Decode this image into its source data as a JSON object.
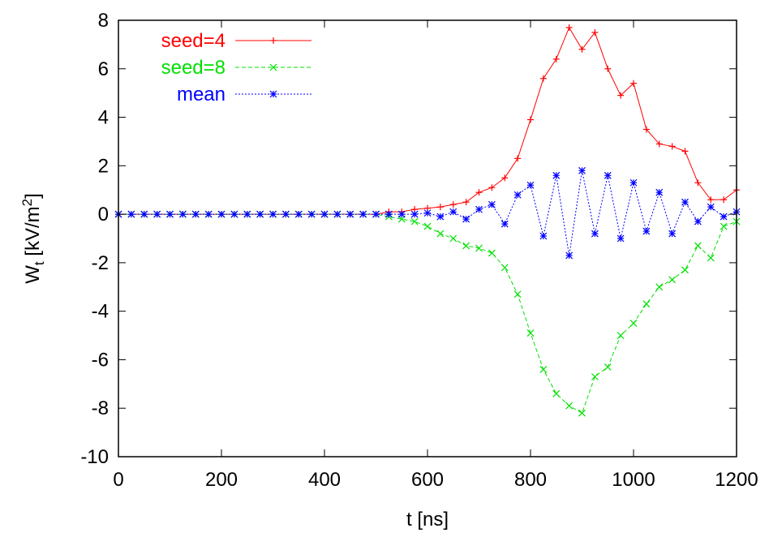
{
  "chart_data": {
    "type": "line",
    "xlabel": "t [ns]",
    "ylabel": {
      "base": "W",
      "sub": "t",
      "unit_open": " [kV/m",
      "sup": "2",
      "unit_close": "]"
    },
    "xlim": [
      0,
      1200
    ],
    "ylim": [
      -10,
      8
    ],
    "xticks": [
      0,
      200,
      400,
      600,
      800,
      1000,
      1200
    ],
    "yticks": [
      -10,
      -8,
      -6,
      -4,
      -2,
      0,
      2,
      4,
      6,
      8
    ],
    "grid": false,
    "legend": "top-left",
    "series": [
      {
        "name": "seed=4",
        "color": "#ff0000",
        "marker": "plus",
        "dash": "",
        "x": [
          0,
          25,
          50,
          75,
          100,
          125,
          150,
          175,
          200,
          225,
          250,
          275,
          300,
          325,
          350,
          375,
          400,
          425,
          450,
          475,
          500,
          525,
          550,
          575,
          600,
          625,
          650,
          675,
          700,
          725,
          750,
          775,
          800,
          825,
          850,
          875,
          900,
          925,
          950,
          975,
          1000,
          1025,
          1050,
          1075,
          1100,
          1125,
          1150,
          1175,
          1200
        ],
        "y": [
          0,
          0,
          0,
          0,
          0,
          0,
          0,
          0,
          0,
          0,
          0,
          0,
          0,
          0,
          0,
          0,
          0,
          0,
          0,
          0,
          0,
          0.1,
          0.1,
          0.2,
          0.25,
          0.3,
          0.4,
          0.5,
          0.9,
          1.1,
          1.5,
          2.3,
          3.9,
          5.6,
          6.4,
          7.7,
          6.8,
          7.5,
          6.0,
          4.9,
          5.4,
          3.5,
          2.9,
          2.8,
          2.6,
          1.3,
          0.6,
          0.6,
          1.0
        ]
      },
      {
        "name": "seed=8",
        "color": "#00e000",
        "marker": "cross",
        "dash": "5,3",
        "x": [
          0,
          25,
          50,
          75,
          100,
          125,
          150,
          175,
          200,
          225,
          250,
          275,
          300,
          325,
          350,
          375,
          400,
          425,
          450,
          475,
          500,
          525,
          550,
          575,
          600,
          625,
          650,
          675,
          700,
          725,
          750,
          775,
          800,
          825,
          850,
          875,
          900,
          925,
          950,
          975,
          1000,
          1025,
          1050,
          1075,
          1100,
          1125,
          1150,
          1175,
          1200
        ],
        "y": [
          0,
          0,
          0,
          0,
          0,
          0,
          0,
          0,
          0,
          0,
          0,
          0,
          0,
          0,
          0,
          0,
          0,
          0,
          0,
          0,
          0,
          -0.1,
          -0.2,
          -0.3,
          -0.5,
          -0.8,
          -1.0,
          -1.3,
          -1.4,
          -1.6,
          -2.2,
          -3.3,
          -4.9,
          -6.4,
          -7.4,
          -7.9,
          -8.2,
          -6.7,
          -6.3,
          -5.0,
          -4.5,
          -3.7,
          -3.0,
          -2.7,
          -2.3,
          -1.3,
          -1.8,
          -0.5,
          -0.3
        ]
      },
      {
        "name": "mean",
        "color": "#0000ff",
        "marker": "star",
        "dash": "2,2",
        "x": [
          0,
          25,
          50,
          75,
          100,
          125,
          150,
          175,
          200,
          225,
          250,
          275,
          300,
          325,
          350,
          375,
          400,
          425,
          450,
          475,
          500,
          525,
          550,
          575,
          600,
          625,
          650,
          675,
          700,
          725,
          750,
          775,
          800,
          825,
          850,
          875,
          900,
          925,
          950,
          975,
          1000,
          1025,
          1050,
          1075,
          1100,
          1125,
          1150,
          1175,
          1200
        ],
        "y": [
          0,
          0,
          0,
          0,
          0,
          0,
          0,
          0,
          0,
          0,
          0,
          0,
          0,
          0,
          0,
          0,
          0,
          0,
          0,
          0,
          0,
          0,
          0,
          0,
          0.05,
          -0.1,
          0.1,
          -0.2,
          0.2,
          0.4,
          -0.4,
          0.8,
          1.2,
          -0.9,
          1.6,
          -1.7,
          1.8,
          -0.8,
          1.6,
          -1.0,
          1.3,
          -0.7,
          0.9,
          -0.8,
          0.5,
          -0.3,
          0.3,
          -0.1,
          0.1
        ]
      }
    ]
  }
}
